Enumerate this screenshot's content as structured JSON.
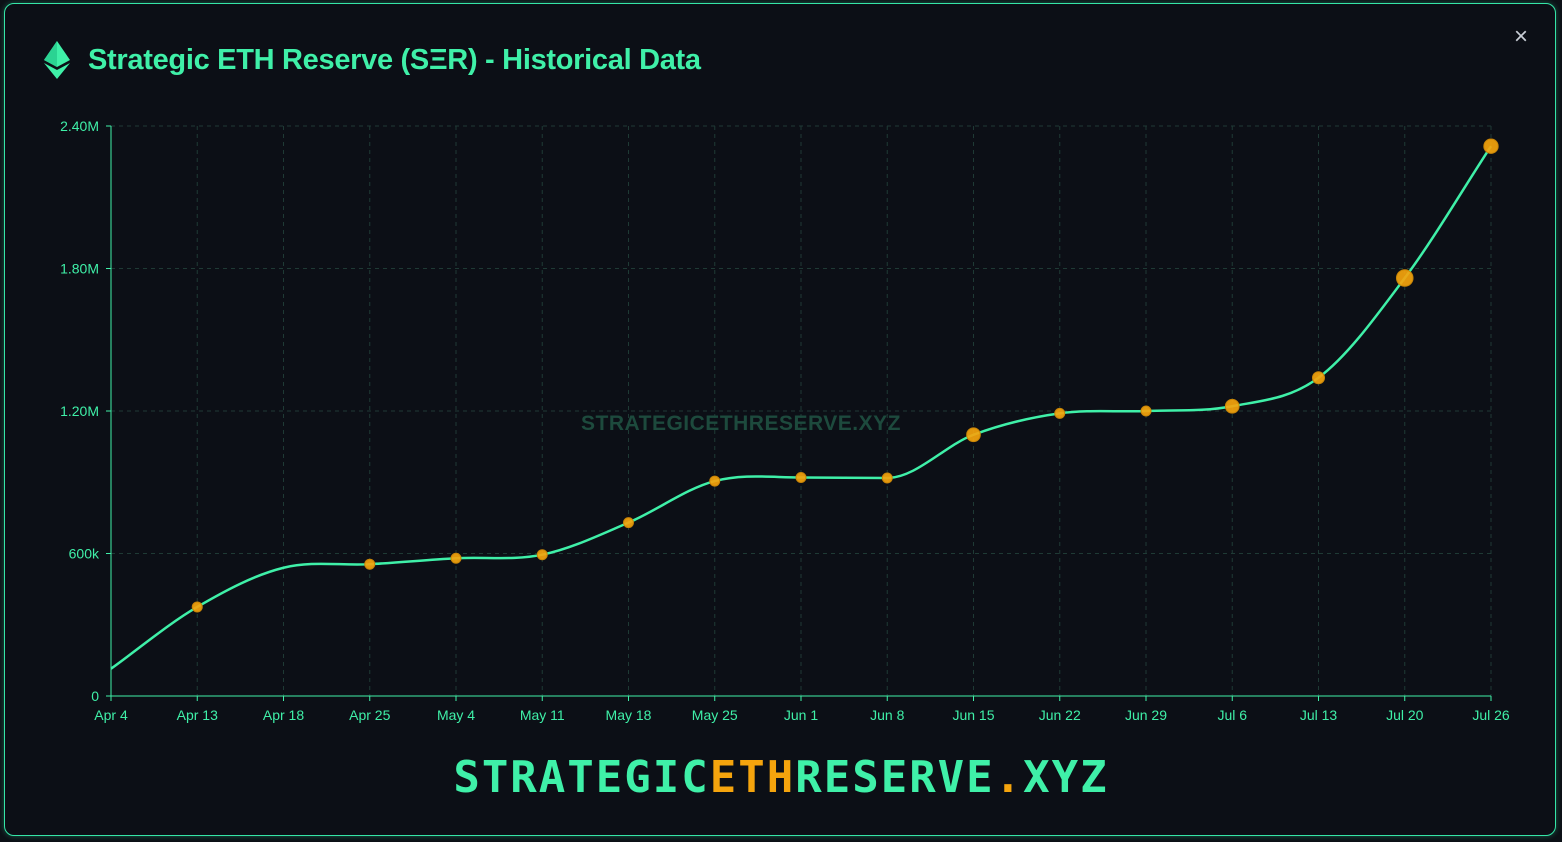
{
  "window": {
    "title": "Strategic ETH Reserve (SΞR) - Historical Data",
    "close_glyph": "×"
  },
  "brand": {
    "part1": "STRATEGIC",
    "part2": "ETH",
    "part3": "RESERVE",
    "part4": ".",
    "part5": "XYZ"
  },
  "colors": {
    "accent": "#3ff0a8",
    "marker": "#f5a40d",
    "background": "#0c0f16",
    "grid": "#1f3a35"
  },
  "icons": {
    "header": "ethereum-icon",
    "close": "close-icon"
  },
  "chart_data": {
    "type": "line",
    "watermark": "STRATEGICETHRESERVE.XYZ",
    "x": [
      "Apr 4",
      "Apr 13",
      "Apr 18",
      "Apr 25",
      "May 4",
      "May 11",
      "May 18",
      "May 25",
      "Jun 1",
      "Jun 8",
      "Jun 15",
      "Jun 22",
      "Jun 29",
      "Jul 6",
      "Jul 13",
      "Jul 20",
      "Jul 26"
    ],
    "series": [
      {
        "values": [
          115000,
          375000,
          540000,
          555000,
          580000,
          595000,
          730000,
          905000,
          920000,
          918000,
          1100000,
          1190000,
          1200000,
          1220000,
          1340000,
          1760000,
          2315000
        ],
        "marker_weight": [
          0,
          1,
          0,
          1,
          1,
          1,
          1,
          1,
          1,
          1,
          2,
          1,
          1,
          2,
          1.5,
          3,
          2.2
        ]
      }
    ],
    "yticks": [
      0,
      600000,
      1200000,
      1800000,
      2400000
    ],
    "ytick_labels": [
      "0",
      "600k",
      "1.20M",
      "1.80M",
      "2.40M"
    ],
    "ylim": [
      0,
      2400000
    ],
    "grid": true,
    "xlabel": "",
    "ylabel": ""
  }
}
